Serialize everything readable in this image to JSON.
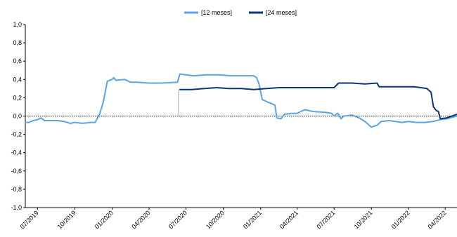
{
  "chart_data": {
    "type": "line",
    "title": "",
    "xlabel": "",
    "ylabel": "",
    "ylim": [
      -1.0,
      1.0
    ],
    "yticks": [
      "1,0",
      "0,8",
      "0,6",
      "0,4",
      "0,2",
      "0,0",
      "-0,2",
      "-0,4",
      "-0,6",
      "-0,8",
      "-1,0"
    ],
    "xlim": [
      "2019-06-01",
      "2022-04-30"
    ],
    "xticks": [
      {
        "date": "2019-07-01",
        "label": "07/2019"
      },
      {
        "date": "2019-10-01",
        "label": "10/2019"
      },
      {
        "date": "2020-01-01",
        "label": "01/2020"
      },
      {
        "date": "2020-04-01",
        "label": "04/2020"
      },
      {
        "date": "2020-07-01",
        "label": "07/2020"
      },
      {
        "date": "2020-10-01",
        "label": "10/2020"
      },
      {
        "date": "2021-01-01",
        "label": "01/2021"
      },
      {
        "date": "2021-04-01",
        "label": "04/2021"
      },
      {
        "date": "2021-07-01",
        "label": "07/2021"
      },
      {
        "date": "2021-10-01",
        "label": "10/2021"
      },
      {
        "date": "2022-01-01",
        "label": "01/2022"
      },
      {
        "date": "2022-04-01",
        "label": "04/2022"
      }
    ],
    "zero_line": "dotted",
    "grid": false,
    "legend_position": "top-center",
    "series": [
      {
        "name": "[12 meses]",
        "color": "#5ba3e6",
        "points": [
          [
            "2019-06-01",
            -0.07
          ],
          [
            "2019-06-10",
            -0.07
          ],
          [
            "2019-06-20",
            -0.05
          ],
          [
            "2019-07-01",
            -0.04
          ],
          [
            "2019-07-10",
            -0.02
          ],
          [
            "2019-07-18",
            -0.05
          ],
          [
            "2019-08-01",
            -0.05
          ],
          [
            "2019-08-20",
            -0.05
          ],
          [
            "2019-09-05",
            -0.06
          ],
          [
            "2019-09-20",
            -0.08
          ],
          [
            "2019-10-01",
            -0.07
          ],
          [
            "2019-10-20",
            -0.08
          ],
          [
            "2019-11-10",
            -0.07
          ],
          [
            "2019-11-20",
            -0.07
          ],
          [
            "2019-12-01",
            0.02
          ],
          [
            "2019-12-10",
            0.15
          ],
          [
            "2019-12-20",
            0.38
          ],
          [
            "2020-01-01",
            0.4
          ],
          [
            "2020-01-05",
            0.42
          ],
          [
            "2020-01-10",
            0.39
          ],
          [
            "2020-02-01",
            0.4
          ],
          [
            "2020-02-15",
            0.37
          ],
          [
            "2020-03-01",
            0.37
          ],
          [
            "2020-04-01",
            0.36
          ],
          [
            "2020-05-01",
            0.36
          ],
          [
            "2020-06-10",
            0.37
          ],
          [
            "2020-06-16",
            0.46
          ],
          [
            "2020-07-01",
            0.45
          ],
          [
            "2020-07-20",
            0.44
          ],
          [
            "2020-08-20",
            0.45
          ],
          [
            "2020-09-20",
            0.45
          ],
          [
            "2020-10-20",
            0.44
          ],
          [
            "2020-11-20",
            0.44
          ],
          [
            "2020-12-15",
            0.44
          ],
          [
            "2020-12-22",
            0.42
          ],
          [
            "2020-12-28",
            0.35
          ],
          [
            "2021-01-05",
            0.18
          ],
          [
            "2021-01-20",
            0.15
          ],
          [
            "2021-02-05",
            0.12
          ],
          [
            "2021-02-10",
            -0.02
          ],
          [
            "2021-02-20",
            -0.03
          ],
          [
            "2021-03-01",
            0.02
          ],
          [
            "2021-03-20",
            0.03
          ],
          [
            "2021-04-01",
            0.03
          ],
          [
            "2021-04-20",
            0.07
          ],
          [
            "2021-05-10",
            0.05
          ],
          [
            "2021-06-10",
            0.04
          ],
          [
            "2021-06-25",
            0.03
          ],
          [
            "2021-07-01",
            0.0
          ],
          [
            "2021-07-10",
            0.03
          ],
          [
            "2021-07-18",
            -0.03
          ],
          [
            "2021-07-25",
            0.0
          ],
          [
            "2021-08-15",
            0.01
          ],
          [
            "2021-09-01",
            -0.02
          ],
          [
            "2021-09-15",
            -0.06
          ],
          [
            "2021-10-01",
            -0.12
          ],
          [
            "2021-10-15",
            -0.1
          ],
          [
            "2021-10-25",
            -0.06
          ],
          [
            "2021-11-15",
            -0.05
          ],
          [
            "2021-12-15",
            -0.07
          ],
          [
            "2022-01-01",
            -0.06
          ],
          [
            "2022-01-20",
            -0.07
          ],
          [
            "2022-02-10",
            -0.07
          ],
          [
            "2022-03-01",
            -0.06
          ],
          [
            "2022-03-20",
            -0.04
          ],
          [
            "2022-04-05",
            -0.03
          ],
          [
            "2022-04-30",
            0.0
          ]
        ]
      },
      {
        "name": "[24 meses]",
        "color": "#0a3673",
        "points": [
          [
            "2020-06-16",
            0.29
          ],
          [
            "2020-07-15",
            0.29
          ],
          [
            "2020-08-15",
            0.3
          ],
          [
            "2020-09-15",
            0.31
          ],
          [
            "2020-10-15",
            0.3
          ],
          [
            "2020-11-15",
            0.3
          ],
          [
            "2020-12-15",
            0.29
          ],
          [
            "2021-01-15",
            0.3
          ],
          [
            "2021-02-15",
            0.31
          ],
          [
            "2021-03-15",
            0.31
          ],
          [
            "2021-04-15",
            0.31
          ],
          [
            "2021-05-15",
            0.31
          ],
          [
            "2021-06-15",
            0.31
          ],
          [
            "2021-07-01",
            0.31
          ],
          [
            "2021-07-12",
            0.36
          ],
          [
            "2021-08-15",
            0.36
          ],
          [
            "2021-09-15",
            0.35
          ],
          [
            "2021-10-15",
            0.36
          ],
          [
            "2021-10-20",
            0.32
          ],
          [
            "2021-11-15",
            0.32
          ],
          [
            "2021-12-15",
            0.32
          ],
          [
            "2022-01-15",
            0.32
          ],
          [
            "2022-02-15",
            0.3
          ],
          [
            "2022-02-25",
            0.26
          ],
          [
            "2022-03-03",
            0.1
          ],
          [
            "2022-03-10",
            0.06
          ],
          [
            "2022-03-15",
            0.05
          ],
          [
            "2022-03-20",
            -0.03
          ],
          [
            "2022-04-05",
            -0.02
          ],
          [
            "2022-04-30",
            0.02
          ]
        ]
      }
    ]
  }
}
